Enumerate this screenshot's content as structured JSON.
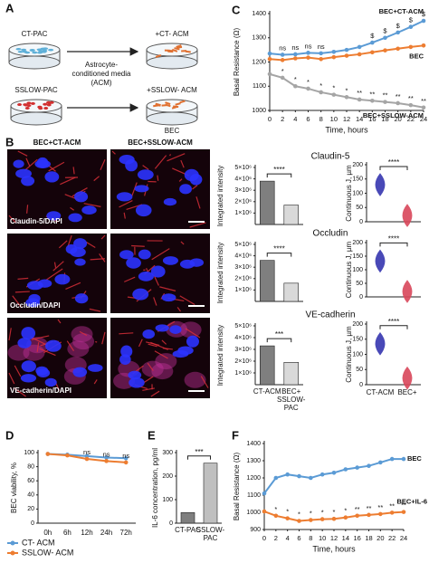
{
  "panels": [
    "A",
    "B",
    "C",
    "D",
    "E",
    "F"
  ],
  "diagram": {
    "ct_pac": "CT-PAC",
    "sslow_pac": "SSLOW-PAC",
    "acm": [
      "Astrocyte-",
      "conditioned media",
      "(ACM)"
    ],
    "ct_acm": "+CT- ACM",
    "sslow_acm": "+SSLOW- ACM",
    "bec": "BEC"
  },
  "images": {
    "columns": [
      "BEC+CT-ACM",
      "BEC+SSLOW-ACM"
    ],
    "rows": [
      "Claudin-5/DAPI",
      "Occludin/DAPI",
      "VE-cadherin/DAPI"
    ]
  },
  "chart_data": [
    {
      "type": "line",
      "y_label": "Basal Resistance (Ω)",
      "x_label": "Time, hours",
      "x": [
        0,
        2,
        4,
        6,
        8,
        10,
        12,
        14,
        16,
        18,
        20,
        22,
        24
      ],
      "xlim": [
        0,
        24
      ],
      "xticks": [
        0,
        2,
        4,
        6,
        8,
        10,
        12,
        14,
        16,
        18,
        20,
        22,
        24
      ],
      "ylim": [
        1000,
        1400
      ],
      "yticks": [
        1000,
        1100,
        1200,
        1300,
        1400
      ],
      "legend": "inline",
      "series": [
        {
          "name": "BEC+CT-ACM",
          "color": "#5b9bd5",
          "values": [
            1235,
            1230,
            1232,
            1238,
            1236,
            1242,
            1250,
            1262,
            1280,
            1300,
            1322,
            1345,
            1370
          ],
          "annotations": [
            null,
            "ns",
            "ns",
            "ns",
            "ns",
            null,
            null,
            null,
            "$",
            "$",
            "$",
            "$",
            "$"
          ],
          "annotation_side": "above"
        },
        {
          "name": "BEC",
          "color": "#ed7d31",
          "values": [
            1212,
            1208,
            1215,
            1218,
            1212,
            1220,
            1226,
            1232,
            1240,
            1248,
            1255,
            1262,
            1268
          ]
        },
        {
          "name": "BEC+SSLOW-ACM",
          "color": "#a5a5a5",
          "values": [
            1150,
            1135,
            1100,
            1090,
            1075,
            1065,
            1055,
            1045,
            1040,
            1035,
            1030,
            1022,
            1012
          ],
          "annotations": [
            null,
            "*",
            "*",
            "*",
            "*",
            "*",
            "*",
            "**",
            "**",
            "**",
            "**",
            "**",
            "**"
          ],
          "annotation_side": "above"
        }
      ]
    },
    {
      "type": "bar",
      "title": "Claudin-5",
      "y_label": "Integrated intensity",
      "categories": [
        null,
        null
      ],
      "values": [
        3800000,
        1700000
      ],
      "colors": [
        "#7f7f7f",
        "#d9d9d9"
      ],
      "significance": "****",
      "ylim": [
        0,
        5000000
      ],
      "yticks": [
        {
          "value": 1000000,
          "label": "1×10⁶"
        },
        {
          "value": 2000000,
          "label": "2×10⁶"
        },
        {
          "value": 3000000,
          "label": "3×10⁶"
        },
        {
          "value": 4000000,
          "label": "4×10⁶"
        },
        {
          "value": 5000000,
          "label": "5×10⁶"
        }
      ]
    },
    {
      "type": "violin",
      "y_label": "Continuous J, µm",
      "categories": [
        null,
        null
      ],
      "values": [
        130,
        22
      ],
      "colors": [
        "#3636b0",
        "#d9475a"
      ],
      "significance": "****",
      "ylim": [
        0,
        200
      ],
      "yticks": [
        0,
        50,
        100,
        150,
        200
      ]
    },
    {
      "type": "bar",
      "title": "Occludin",
      "y_label": "Integrated intensity",
      "categories": [
        null,
        null
      ],
      "values": [
        3600000,
        1600000
      ],
      "colors": [
        "#7f7f7f",
        "#d9d9d9"
      ],
      "significance": "****",
      "ylim": [
        0,
        5000000
      ],
      "yticks": [
        {
          "value": 1000000,
          "label": "1×10⁶"
        },
        {
          "value": 2000000,
          "label": "2×10⁶"
        },
        {
          "value": 3000000,
          "label": "3×10⁶"
        },
        {
          "value": 4000000,
          "label": "4×10⁶"
        },
        {
          "value": 5000000,
          "label": "5×10⁶"
        }
      ]
    },
    {
      "type": "violin",
      "y_label": "Continuous J, µm",
      "categories": [
        null,
        null
      ],
      "values": [
        132,
        20
      ],
      "colors": [
        "#3636b0",
        "#d9475a"
      ],
      "significance": "****",
      "ylim": [
        0,
        200
      ],
      "yticks": [
        0,
        50,
        100,
        150,
        200
      ]
    },
    {
      "type": "bar",
      "title": "VE-cadherin",
      "y_label": "Integrated intensity",
      "categories": [
        "CT-ACM",
        "BEC+ SSLOW-PAC"
      ],
      "values": [
        3300000,
        1900000
      ],
      "colors": [
        "#7f7f7f",
        "#d9d9d9"
      ],
      "significance": "***",
      "ylim": [
        0,
        5000000
      ],
      "yticks": [
        {
          "value": 1000000,
          "label": "1×10⁶"
        },
        {
          "value": 2000000,
          "label": "2×10⁶"
        },
        {
          "value": 3000000,
          "label": "3×10⁶"
        },
        {
          "value": 4000000,
          "label": "4×10⁶"
        },
        {
          "value": 5000000,
          "label": "5×10⁶"
        }
      ]
    },
    {
      "type": "violin",
      "y_label": "Continuous J, µm",
      "categories": [
        "CT-ACM",
        "BEC+"
      ],
      "values": [
        135,
        22
      ],
      "colors": [
        "#3636b0",
        "#d9475a"
      ],
      "significance": "****",
      "ylim": [
        0,
        200
      ],
      "yticks": [
        0,
        50,
        100,
        150,
        200
      ]
    },
    {
      "type": "line",
      "y_label": "BEC viability, %",
      "categories": [
        "0h",
        "6h",
        "12h",
        "24h",
        "72h"
      ],
      "ylim": [
        0,
        100
      ],
      "yticks": [
        0,
        20,
        40,
        60,
        80,
        100
      ],
      "legend": "lower left",
      "series": [
        {
          "name": "CT- ACM",
          "color": "#5b9bd5",
          "values": [
            98,
            97,
            95,
            93,
            92
          ]
        },
        {
          "name": "SSLOW- ACM",
          "color": "#ed7d31",
          "values": [
            98,
            96,
            91,
            88,
            86
          ],
          "annotations": [
            null,
            null,
            "ns",
            "ns",
            "ns"
          ],
          "annotation_side": "above"
        }
      ]
    },
    {
      "type": "bar",
      "y_label": "IL-6 concentration, pg/ml",
      "categories": [
        "CT-PAC",
        "SSLOW-PAC"
      ],
      "values": [
        45,
        255
      ],
      "colors": [
        "#7f7f7f",
        "#bfbfbf"
      ],
      "significance": "***",
      "ylim": [
        0,
        300
      ],
      "yticks": [
        0,
        100,
        200,
        300
      ]
    },
    {
      "type": "line",
      "y_label": "Basal Resistance (Ω)",
      "x_label": "Time, hours",
      "x": [
        0,
        2,
        4,
        6,
        8,
        10,
        12,
        14,
        16,
        18,
        20,
        22,
        24
      ],
      "xlim": [
        0,
        24
      ],
      "xticks": [
        0,
        2,
        4,
        6,
        8,
        10,
        12,
        14,
        16,
        18,
        20,
        22,
        24
      ],
      "ylim": [
        900,
        1400
      ],
      "yticks": [
        900,
        1000,
        1100,
        1200,
        1300,
        1400
      ],
      "legend": "inline",
      "series": [
        {
          "name": "BEC",
          "color": "#5b9bd5",
          "values": [
            1110,
            1200,
            1220,
            1210,
            1200,
            1220,
            1230,
            1250,
            1260,
            1270,
            1290,
            1310,
            1310
          ]
        },
        {
          "name": "BEC+IL-6",
          "color": "#ed7d31",
          "values": [
            1005,
            980,
            965,
            950,
            955,
            960,
            962,
            970,
            980,
            985,
            990,
            998,
            1002
          ],
          "annotations": [
            null,
            "*",
            "*",
            "*",
            "*",
            "*",
            "*",
            "*",
            "**",
            "**",
            "**",
            "**",
            "**"
          ],
          "annotation_side": "above"
        }
      ]
    }
  ]
}
